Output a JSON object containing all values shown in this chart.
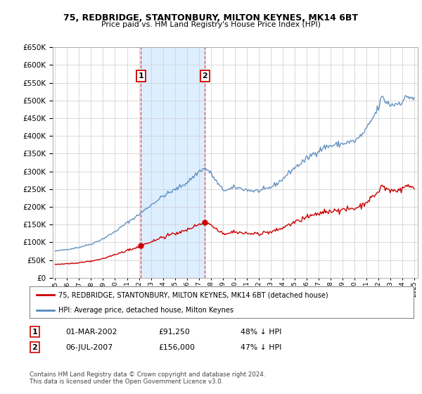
{
  "title": "75, REDBRIDGE, STANTONBURY, MILTON KEYNES, MK14 6BT",
  "subtitle": "Price paid vs. HM Land Registry's House Price Index (HPI)",
  "legend_line1": "75, REDBRIDGE, STANTONBURY, MILTON KEYNES, MK14 6BT (detached house)",
  "legend_line2": "HPI: Average price, detached house, Milton Keynes",
  "transaction1_date": "01-MAR-2002",
  "transaction1_price": "£91,250",
  "transaction1_hpi": "48% ↓ HPI",
  "transaction2_date": "06-JUL-2007",
  "transaction2_price": "£156,000",
  "transaction2_hpi": "47% ↓ HPI",
  "footer": "Contains HM Land Registry data © Crown copyright and database right 2024.\nThis data is licensed under the Open Government Licence v3.0.",
  "property_color": "#cc0000",
  "hpi_color": "#5588bb",
  "shade_color": "#ddeeff",
  "grid_color": "#cccccc",
  "transaction1_x": 2002.17,
  "transaction2_x": 2007.51,
  "ylim_min": 0,
  "ylim_max": 650000,
  "xlim_min": 1994.8,
  "xlim_max": 2025.3
}
